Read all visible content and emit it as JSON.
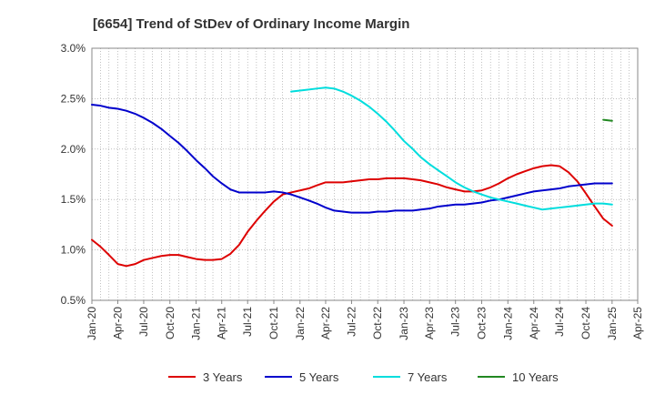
{
  "chart_data": {
    "type": "line",
    "title": "[6654]  Trend of StDev of Ordinary Income Margin",
    "xlabel": "",
    "ylabel": "",
    "x_tick_labels": [
      "Jan-20",
      "Apr-20",
      "Jul-20",
      "Oct-20",
      "Jan-21",
      "Apr-21",
      "Jul-21",
      "Oct-21",
      "Jan-22",
      "Apr-22",
      "Jul-22",
      "Oct-22",
      "Jan-23",
      "Apr-23",
      "Jul-23",
      "Oct-23",
      "Jan-24",
      "Apr-24",
      "Jul-24",
      "Oct-24",
      "Jan-25",
      "Apr-25"
    ],
    "y_tick_labels": [
      "0.5%",
      "1.0%",
      "1.5%",
      "2.0%",
      "2.5%",
      "3.0%"
    ],
    "y_ticks": [
      0.5,
      1.0,
      1.5,
      2.0,
      2.5,
      3.0
    ],
    "ylim": [
      0.5,
      3.0
    ],
    "grid": true,
    "legend_position": "bottom",
    "series": [
      {
        "name": "3 Years",
        "color": "#dd0000",
        "x": [
          "2020-01",
          "2020-02",
          "2020-03",
          "2020-04",
          "2020-05",
          "2020-06",
          "2020-07",
          "2020-08",
          "2020-09",
          "2020-10",
          "2020-11",
          "2020-12",
          "2021-01",
          "2021-02",
          "2021-03",
          "2021-04",
          "2021-05",
          "2021-06",
          "2021-07",
          "2021-08",
          "2021-09",
          "2021-10",
          "2021-11",
          "2021-12",
          "2022-01",
          "2022-02",
          "2022-03",
          "2022-04",
          "2022-05",
          "2022-06",
          "2022-07",
          "2022-08",
          "2022-09",
          "2022-10",
          "2022-11",
          "2022-12",
          "2023-01",
          "2023-02",
          "2023-03",
          "2023-04",
          "2023-05",
          "2023-06",
          "2023-07",
          "2023-08",
          "2023-09",
          "2023-10",
          "2023-11",
          "2023-12",
          "2024-01",
          "2024-02",
          "2024-03",
          "2024-04",
          "2024-05",
          "2024-06",
          "2024-07",
          "2024-08",
          "2024-09",
          "2024-10",
          "2024-11",
          "2024-12",
          "2025-01"
        ],
        "values": [
          1.1,
          1.03,
          0.95,
          0.86,
          0.84,
          0.86,
          0.9,
          0.92,
          0.94,
          0.95,
          0.95,
          0.93,
          0.91,
          0.9,
          0.9,
          0.91,
          0.96,
          1.05,
          1.18,
          1.29,
          1.39,
          1.48,
          1.55,
          1.57,
          1.59,
          1.61,
          1.64,
          1.67,
          1.67,
          1.67,
          1.68,
          1.69,
          1.7,
          1.7,
          1.71,
          1.71,
          1.71,
          1.7,
          1.69,
          1.67,
          1.65,
          1.62,
          1.6,
          1.58,
          1.58,
          1.59,
          1.62,
          1.66,
          1.71,
          1.75,
          1.78,
          1.81,
          1.83,
          1.84,
          1.83,
          1.77,
          1.68,
          1.56,
          1.43,
          1.31,
          1.24
        ]
      },
      {
        "name": "5 Years",
        "color": "#0000cc",
        "x": [
          "2020-01",
          "2020-02",
          "2020-03",
          "2020-04",
          "2020-05",
          "2020-06",
          "2020-07",
          "2020-08",
          "2020-09",
          "2020-10",
          "2020-11",
          "2020-12",
          "2021-01",
          "2021-02",
          "2021-03",
          "2021-04",
          "2021-05",
          "2021-06",
          "2021-07",
          "2021-08",
          "2021-09",
          "2021-10",
          "2021-11",
          "2021-12",
          "2022-01",
          "2022-02",
          "2022-03",
          "2022-04",
          "2022-05",
          "2022-06",
          "2022-07",
          "2022-08",
          "2022-09",
          "2022-10",
          "2022-11",
          "2022-12",
          "2023-01",
          "2023-02",
          "2023-03",
          "2023-04",
          "2023-05",
          "2023-06",
          "2023-07",
          "2023-08",
          "2023-09",
          "2023-10",
          "2023-11",
          "2023-12",
          "2024-01",
          "2024-02",
          "2024-03",
          "2024-04",
          "2024-05",
          "2024-06",
          "2024-07",
          "2024-08",
          "2024-09",
          "2024-10",
          "2024-11",
          "2024-12",
          "2025-01"
        ],
        "values": [
          2.44,
          2.43,
          2.41,
          2.4,
          2.38,
          2.35,
          2.31,
          2.26,
          2.2,
          2.13,
          2.06,
          1.98,
          1.89,
          1.81,
          1.73,
          1.66,
          1.6,
          1.57,
          1.57,
          1.57,
          1.57,
          1.58,
          1.57,
          1.55,
          1.52,
          1.49,
          1.46,
          1.42,
          1.39,
          1.38,
          1.37,
          1.37,
          1.37,
          1.38,
          1.38,
          1.39,
          1.39,
          1.39,
          1.4,
          1.41,
          1.43,
          1.44,
          1.45,
          1.45,
          1.46,
          1.47,
          1.49,
          1.5,
          1.52,
          1.54,
          1.56,
          1.58,
          1.59,
          1.6,
          1.61,
          1.63,
          1.64,
          1.65,
          1.66,
          1.66,
          1.66
        ]
      },
      {
        "name": "7 Years",
        "color": "#00dddd",
        "x": [
          "2021-12",
          "2022-01",
          "2022-02",
          "2022-03",
          "2022-04",
          "2022-05",
          "2022-06",
          "2022-07",
          "2022-08",
          "2022-09",
          "2022-10",
          "2022-11",
          "2022-12",
          "2023-01",
          "2023-02",
          "2023-03",
          "2023-04",
          "2023-05",
          "2023-06",
          "2023-07",
          "2023-08",
          "2023-09",
          "2023-10",
          "2023-11",
          "2023-12",
          "2024-01",
          "2024-02",
          "2024-03",
          "2024-04",
          "2024-05",
          "2024-06",
          "2024-07",
          "2024-08",
          "2024-09",
          "2024-10",
          "2024-11",
          "2024-12",
          "2025-01"
        ],
        "values": [
          2.57,
          2.58,
          2.59,
          2.6,
          2.61,
          2.6,
          2.57,
          2.53,
          2.48,
          2.42,
          2.35,
          2.27,
          2.18,
          2.08,
          2.0,
          1.92,
          1.85,
          1.79,
          1.73,
          1.67,
          1.62,
          1.58,
          1.55,
          1.52,
          1.5,
          1.48,
          1.46,
          1.44,
          1.42,
          1.4,
          1.41,
          1.42,
          1.43,
          1.44,
          1.45,
          1.46,
          1.46,
          1.45
        ]
      },
      {
        "name": "10 Years",
        "color": "#228822",
        "x": [
          "2024-12",
          "2025-01"
        ],
        "values": [
          2.29,
          2.28
        ]
      }
    ]
  }
}
